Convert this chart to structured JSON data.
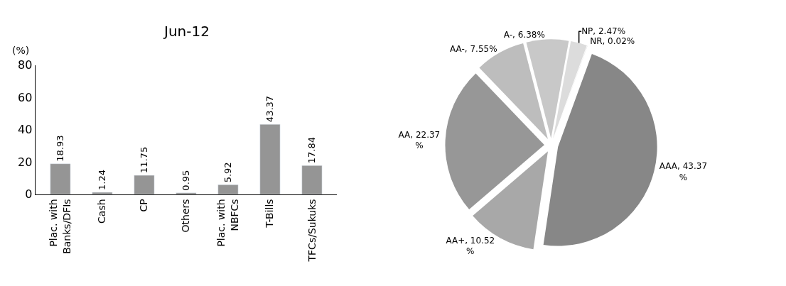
{
  "chart_data": [
    {
      "type": "bar",
      "title": "Jun-12",
      "ylabel": "(%)",
      "categories": [
        "Plac. with Banks/DFIs",
        "Cash",
        "CP",
        "Others",
        "Plac. with NBFCs",
        "T-Bills",
        "TFCs/Sukuks"
      ],
      "values": [
        18.93,
        1.24,
        11.75,
        0.95,
        5.92,
        43.37,
        17.84
      ],
      "color": "#959595",
      "ylim": [
        0,
        80
      ],
      "yticks": [
        0,
        20,
        40,
        60,
        80
      ],
      "data_labels": true
    },
    {
      "type": "pie",
      "categories": [
        "AAA",
        "AA+",
        "AA",
        "AA-",
        "A-",
        "NP",
        "NR"
      ],
      "values": [
        43.37,
        10.52,
        22.37,
        7.55,
        6.38,
        2.47,
        0.02
      ],
      "value_labels": [
        "43.37 %",
        "10.52 %",
        "22.37 %",
        "7.55%",
        "6.38%",
        "2.47%",
        "0.02%"
      ],
      "colors": [
        "#878787",
        "#a8a8a8",
        "#979797",
        "#bdbdbd",
        "#c8c8c8",
        "#dcdcdc",
        "#d0d0d0"
      ]
    }
  ]
}
